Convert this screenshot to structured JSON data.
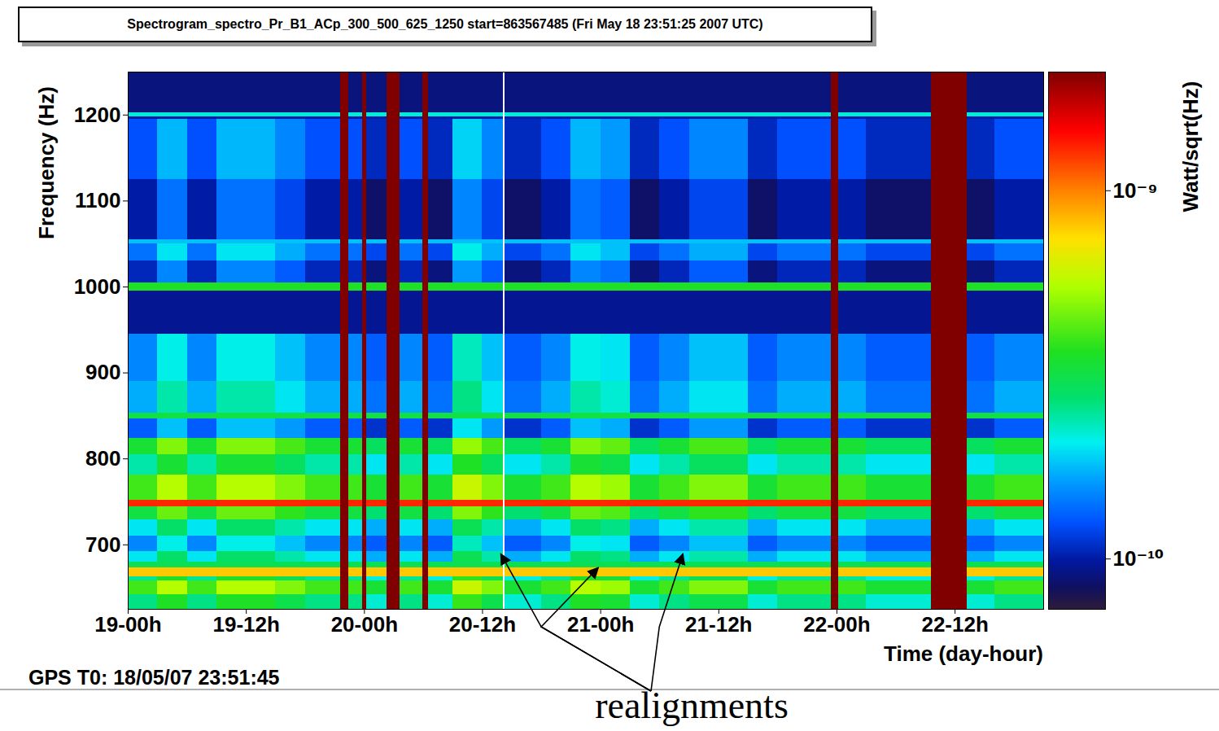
{
  "chart_data": {
    "type": "heatmap",
    "title": "Spectrogram_spectro_Pr_B1_ACp_300_500_625_1250 start=863567485 (Fri May 18 23:51:25 2007 UTC)",
    "x_label": "Time (day-hour)",
    "y_label": "Frequency (Hz)",
    "caption": "GPS T0: 18/05/07 23:51:45",
    "xlim": [
      0,
      93
    ],
    "xticks": [
      {
        "value": 0,
        "label": "19-00h"
      },
      {
        "value": 12,
        "label": "19-12h"
      },
      {
        "value": 24,
        "label": "20-00h"
      },
      {
        "value": 36,
        "label": "20-12h"
      },
      {
        "value": 48,
        "label": "21-00h"
      },
      {
        "value": 60,
        "label": "21-12h"
      },
      {
        "value": 72,
        "label": "22-00h"
      },
      {
        "value": 84,
        "label": "22-12h"
      }
    ],
    "ylim": [
      625,
      1250
    ],
    "yticks": [
      700,
      800,
      900,
      1000,
      1100,
      1200
    ],
    "x_edges": [
      0,
      3,
      6,
      9,
      12,
      15,
      18,
      21.6,
      22.4,
      23.8,
      24.2,
      26.3,
      27.6,
      29.9,
      30.5,
      33,
      36,
      38.1,
      38.3,
      42,
      45,
      48,
      51,
      54,
      57,
      60,
      63,
      66,
      69,
      71.4,
      72.2,
      75,
      78,
      81.6,
      85.2,
      88,
      93
    ],
    "y_edges": [
      625,
      642,
      658,
      663,
      673,
      680,
      692,
      710,
      729,
      744,
      752,
      781,
      805,
      824,
      847,
      853,
      890,
      945,
      995,
      1005,
      1030,
      1050,
      1055,
      1125,
      1195,
      1198,
      1203,
      1250
    ],
    "cells": [
      [
        2.6e-10,
        3.6e-10,
        2.6e-10,
        3.6e-10,
        3.6e-10,
        3.1e-10,
        2.6e-10,
        2.1e-09,
        2.6e-10,
        2.1e-09,
        2.2e-10,
        2.1e-09,
        2.6e-10,
        2.1e-09,
        2.2e-10,
        3.9e-10,
        3.1e-10,
        null,
        2.2e-10,
        2.6e-10,
        3.6e-10,
        3.4e-10,
        2.2e-10,
        2.6e-10,
        3.1e-10,
        3.1e-10,
        2.2e-10,
        2.6e-10,
        2.6e-10,
        2.1e-09,
        2.6e-10,
        2.2e-10,
        2.2e-10,
        2.1e-09,
        2.2e-10,
        2.6e-10
      ],
      [
        4e-10,
        5.6e-10,
        4e-10,
        5.6e-10,
        5.6e-10,
        4.8e-10,
        4e-10,
        2.1e-09,
        4e-10,
        2.1e-09,
        3.4e-10,
        2.1e-09,
        4e-10,
        2.1e-09,
        3.4e-10,
        6e-10,
        4.8e-10,
        null,
        3.4e-10,
        4e-10,
        5.6e-10,
        5.2e-10,
        3.4e-10,
        4e-10,
        4.8e-10,
        4.8e-10,
        3.4e-10,
        4e-10,
        4e-10,
        2.1e-09,
        4e-10,
        3.4e-10,
        3.4e-10,
        2.1e-09,
        3.4e-10,
        4e-10
      ],
      [
        2.5e-10,
        3.5e-10,
        2.5e-10,
        3.5e-10,
        3.5e-10,
        3e-10,
        2.5e-10,
        2.1e-09,
        2.5e-10,
        2.1e-09,
        2.1e-10,
        2.1e-09,
        2.5e-10,
        2.1e-09,
        2.1e-10,
        3.8e-10,
        3e-10,
        null,
        2.1e-10,
        2.5e-10,
        3.5e-10,
        3.3e-10,
        2.1e-10,
        2.5e-10,
        3e-10,
        3e-10,
        2.1e-10,
        2.5e-10,
        2.5e-10,
        2.1e-09,
        2.5e-10,
        2.1e-10,
        2.1e-10,
        2.1e-09,
        2.1e-10,
        2.5e-10
      ],
      [
        8e-10,
        8e-10,
        8e-10,
        8e-10,
        8e-10,
        8e-10,
        8e-10,
        2.1e-09,
        8e-10,
        2.1e-09,
        8e-10,
        2.1e-09,
        8e-10,
        2.1e-09,
        8e-10,
        8e-10,
        8e-10,
        null,
        8e-10,
        8e-10,
        8e-10,
        8e-10,
        8e-10,
        8e-10,
        8e-10,
        8e-10,
        8e-10,
        8e-10,
        8e-10,
        2.1e-09,
        8e-10,
        8e-10,
        8e-10,
        2.1e-09,
        8e-10,
        8e-10
      ],
      [
        3e-10,
        3e-10,
        3e-10,
        3e-10,
        3e-10,
        3e-10,
        3e-10,
        2.1e-09,
        3e-10,
        2.1e-09,
        3e-10,
        2.1e-09,
        3e-10,
        2.1e-09,
        3e-10,
        3e-10,
        3e-10,
        null,
        3e-10,
        3e-10,
        3e-10,
        3e-10,
        3e-10,
        3e-10,
        3e-10,
        3e-10,
        3e-10,
        3e-10,
        3e-10,
        2.1e-09,
        3e-10,
        3e-10,
        3e-10,
        2.1e-09,
        3e-10,
        3e-10
      ],
      [
        2e-10,
        2.8e-10,
        2e-10,
        2.8e-10,
        2.8e-10,
        2.4e-10,
        2e-10,
        2.1e-09,
        2e-10,
        2.1e-09,
        1.7e-10,
        2.1e-09,
        2e-10,
        2.1e-09,
        1.7e-10,
        3e-10,
        2.4e-10,
        null,
        1.7e-10,
        2e-10,
        2.8e-10,
        2.6e-10,
        1.7e-10,
        2e-10,
        2.4e-10,
        2.4e-10,
        1.7e-10,
        2e-10,
        2e-10,
        2.1e-09,
        2e-10,
        1.7e-10,
        1.7e-10,
        2.1e-09,
        1.7e-10,
        2e-10
      ],
      [
        1.5e-10,
        2.1e-10,
        1.5e-10,
        2.1e-10,
        2.1e-10,
        1.8e-10,
        1.5e-10,
        2.1e-09,
        1.5e-10,
        2.1e-09,
        1.3e-10,
        2.1e-09,
        1.5e-10,
        2.1e-09,
        1.3e-10,
        2.3e-10,
        1.8e-10,
        null,
        1.3e-10,
        1.5e-10,
        2.1e-10,
        2e-10,
        1.3e-10,
        1.5e-10,
        1.8e-10,
        1.8e-10,
        1.3e-10,
        1.5e-10,
        1.5e-10,
        2.1e-09,
        1.5e-10,
        1.3e-10,
        1.3e-10,
        2.1e-09,
        1.3e-10,
        1.5e-10
      ],
      [
        2e-10,
        2.8e-10,
        2e-10,
        2.8e-10,
        2.8e-10,
        2.4e-10,
        2e-10,
        2.1e-09,
        2e-10,
        2.1e-09,
        1.7e-10,
        2.1e-09,
        2e-10,
        2.1e-09,
        1.7e-10,
        3e-10,
        2.4e-10,
        null,
        1.7e-10,
        2e-10,
        2.8e-10,
        2.6e-10,
        1.7e-10,
        2e-10,
        2.4e-10,
        2.4e-10,
        1.7e-10,
        2e-10,
        2e-10,
        2.1e-09,
        2e-10,
        1.7e-10,
        1.7e-10,
        2.1e-09,
        1.7e-10,
        2e-10
      ],
      [
        3.2e-10,
        4.5e-10,
        3.2e-10,
        4.5e-10,
        4.5e-10,
        3.8e-10,
        3.2e-10,
        2.1e-09,
        3.2e-10,
        2.1e-09,
        2.7e-10,
        2.1e-09,
        3.2e-10,
        2.1e-09,
        2.7e-10,
        4.8e-10,
        3.8e-10,
        null,
        2.7e-10,
        3.2e-10,
        4.5e-10,
        4.2e-10,
        2.7e-10,
        3.2e-10,
        3.8e-10,
        3.8e-10,
        2.7e-10,
        3.2e-10,
        3.2e-10,
        2.1e-09,
        3.2e-10,
        2.7e-10,
        2.7e-10,
        2.1e-09,
        2.7e-10,
        3.2e-10
      ],
      [
        1.3e-09,
        1.3e-09,
        1.3e-09,
        1.3e-09,
        1.3e-09,
        1.3e-09,
        1.3e-09,
        2.1e-09,
        1.3e-09,
        2.1e-09,
        1.3e-09,
        2.1e-09,
        1.3e-09,
        2.1e-09,
        1.3e-09,
        1.3e-09,
        1.3e-09,
        null,
        1.3e-09,
        1.3e-09,
        1.3e-09,
        1.3e-09,
        1.3e-09,
        1.3e-09,
        1.3e-09,
        1.3e-09,
        1.3e-09,
        1.3e-09,
        1.3e-09,
        2.1e-09,
        1.3e-09,
        1.3e-09,
        1.3e-09,
        2.1e-09,
        1.3e-09,
        1.3e-09
      ],
      [
        4e-10,
        5.6e-10,
        4e-10,
        5.6e-10,
        5.6e-10,
        4.8e-10,
        4e-10,
        2.1e-09,
        4e-10,
        2.1e-09,
        3.4e-10,
        2.1e-09,
        4e-10,
        2.1e-09,
        3.4e-10,
        6e-10,
        4.8e-10,
        null,
        3.4e-10,
        4e-10,
        5.6e-10,
        5.2e-10,
        3.4e-10,
        4e-10,
        4.8e-10,
        4.8e-10,
        3.4e-10,
        4e-10,
        4e-10,
        2.1e-09,
        4e-10,
        3.4e-10,
        3.4e-10,
        2.1e-09,
        3.4e-10,
        4e-10
      ],
      [
        2.4e-10,
        3.4e-10,
        2.4e-10,
        3.4e-10,
        3.4e-10,
        2.9e-10,
        2.4e-10,
        2.1e-09,
        2.4e-10,
        2.1e-09,
        2e-10,
        2.1e-09,
        2.4e-10,
        2.1e-09,
        2e-10,
        3.6e-10,
        2.9e-10,
        null,
        2e-10,
        2.4e-10,
        3.4e-10,
        3.1e-10,
        2e-10,
        2.4e-10,
        2.9e-10,
        2.9e-10,
        2e-10,
        2.4e-10,
        2.4e-10,
        2.1e-09,
        2.4e-10,
        2e-10,
        2e-10,
        2.1e-09,
        2e-10,
        2.4e-10
      ],
      [
        3.4e-10,
        4.8e-10,
        3.4e-10,
        4.8e-10,
        4.8e-10,
        4.1e-10,
        3.4e-10,
        2.1e-09,
        3.4e-10,
        2.1e-09,
        2.9e-10,
        2.1e-09,
        3.4e-10,
        2.1e-09,
        2.9e-10,
        5.1e-10,
        4.1e-10,
        null,
        2.9e-10,
        3.4e-10,
        4.8e-10,
        4.4e-10,
        2.9e-10,
        3.4e-10,
        4.1e-10,
        4.1e-10,
        2.9e-10,
        3.4e-10,
        3.4e-10,
        2.1e-09,
        3.4e-10,
        2.9e-10,
        2.9e-10,
        2.1e-09,
        2.9e-10,
        3.4e-10
      ],
      [
        1.3e-10,
        1.8e-10,
        1.3e-10,
        1.8e-10,
        1.8e-10,
        1.6e-10,
        1.3e-10,
        2.1e-09,
        1.3e-10,
        2.1e-09,
        1.1e-10,
        2.1e-09,
        1.3e-10,
        2.1e-09,
        1.1e-10,
        2e-10,
        1.6e-10,
        null,
        1.1e-10,
        1.3e-10,
        1.8e-10,
        1.7e-10,
        1.1e-10,
        1.3e-10,
        1.6e-10,
        1.6e-10,
        1.1e-10,
        1.3e-10,
        1.3e-10,
        2.1e-09,
        1.3e-10,
        1.1e-10,
        1.1e-10,
        2.1e-09,
        1.1e-10,
        1.3e-10
      ],
      [
        3.2e-10,
        3.2e-10,
        3.2e-10,
        3.2e-10,
        3.2e-10,
        3.2e-10,
        3.2e-10,
        2.1e-09,
        3.2e-10,
        2.1e-09,
        3.2e-10,
        2.1e-09,
        3.2e-10,
        2.1e-09,
        3.2e-10,
        3.2e-10,
        3.2e-10,
        null,
        3.2e-10,
        3.2e-10,
        3.2e-10,
        3.2e-10,
        3.2e-10,
        3.2e-10,
        3.2e-10,
        3.2e-10,
        3.2e-10,
        3.2e-10,
        3.2e-10,
        2.1e-09,
        3.2e-10,
        3.2e-10,
        3.2e-10,
        2.1e-09,
        3.2e-10,
        3.2e-10
      ],
      [
        1.7e-10,
        2.4e-10,
        1.7e-10,
        2.4e-10,
        2.4e-10,
        2e-10,
        1.7e-10,
        2.1e-09,
        1.7e-10,
        2.1e-09,
        1.4e-10,
        2.1e-09,
        1.7e-10,
        2.1e-09,
        1.4e-10,
        2.6e-10,
        2e-10,
        null,
        1.4e-10,
        1.7e-10,
        2.4e-10,
        2.2e-10,
        1.4e-10,
        1.7e-10,
        2e-10,
        2e-10,
        1.4e-10,
        1.7e-10,
        1.7e-10,
        2.1e-09,
        1.7e-10,
        1.4e-10,
        1.4e-10,
        2.1e-09,
        1.4e-10,
        1.7e-10
      ],
      [
        1.5e-10,
        2.1e-10,
        1.5e-10,
        2.1e-10,
        2.1e-10,
        1.8e-10,
        1.5e-10,
        2.1e-09,
        1.5e-10,
        2.1e-09,
        1.3e-10,
        2.1e-09,
        1.5e-10,
        2.1e-09,
        1.3e-10,
        2.3e-10,
        1.8e-10,
        null,
        1.3e-10,
        1.5e-10,
        2.1e-10,
        2e-10,
        1.3e-10,
        1.5e-10,
        1.8e-10,
        1.8e-10,
        1.3e-10,
        1.5e-10,
        1.5e-10,
        2.1e-09,
        1.5e-10,
        1.3e-10,
        1.3e-10,
        2.1e-09,
        1.3e-10,
        1.5e-10
      ],
      [
        9.5e-11,
        9.5e-11,
        9.5e-11,
        9.5e-11,
        9.5e-11,
        9.5e-11,
        9.5e-11,
        2.1e-09,
        9.5e-11,
        2.1e-09,
        9.5e-11,
        2.1e-09,
        9.5e-11,
        2.1e-09,
        9.5e-11,
        9.5e-11,
        9.5e-11,
        null,
        9.5e-11,
        9.5e-11,
        9.5e-11,
        9.5e-11,
        9.5e-11,
        9.5e-11,
        9.5e-11,
        9.5e-11,
        9.5e-11,
        9.5e-11,
        9.5e-11,
        2.1e-09,
        9.5e-11,
        9.5e-11,
        9.5e-11,
        2.1e-09,
        9.5e-11,
        9.5e-11
      ],
      [
        3.6e-10,
        3.6e-10,
        3.6e-10,
        3.6e-10,
        3.6e-10,
        3.6e-10,
        3.6e-10,
        2.1e-09,
        3.6e-10,
        2.1e-09,
        3.6e-10,
        2.1e-09,
        3.6e-10,
        2.1e-09,
        3.6e-10,
        3.6e-10,
        3.6e-10,
        null,
        3.6e-10,
        3.6e-10,
        3.6e-10,
        3.6e-10,
        3.6e-10,
        3.6e-10,
        3.6e-10,
        3.6e-10,
        3.6e-10,
        3.6e-10,
        3.6e-10,
        2.1e-09,
        3.6e-10,
        3.6e-10,
        3.6e-10,
        2.1e-09,
        3.6e-10,
        3.6e-10
      ],
      [
        1.05e-10,
        1.5e-10,
        1.05e-10,
        1.5e-10,
        1.5e-10,
        1.3e-10,
        1.05e-10,
        2.1e-09,
        1.05e-10,
        2.1e-09,
        9e-11,
        2.1e-09,
        1.05e-10,
        2.1e-09,
        9e-11,
        1.6e-10,
        1.3e-10,
        null,
        9e-11,
        1.05e-10,
        1.5e-10,
        1.4e-10,
        9e-11,
        1.05e-10,
        1.3e-10,
        1.3e-10,
        9e-11,
        1.05e-10,
        1.05e-10,
        2.1e-09,
        1.05e-10,
        9e-11,
        9e-11,
        2.1e-09,
        9e-11,
        1.05e-10
      ],
      [
        1.4e-10,
        2e-10,
        1.4e-10,
        2e-10,
        2e-10,
        1.7e-10,
        1.4e-10,
        2.1e-09,
        1.4e-10,
        2.1e-09,
        1.2e-10,
        2.1e-09,
        1.4e-10,
        2.1e-09,
        1.2e-10,
        2.1e-10,
        1.7e-10,
        null,
        1.2e-10,
        1.4e-10,
        2e-10,
        1.8e-10,
        1.2e-10,
        1.4e-10,
        1.7e-10,
        1.7e-10,
        1.2e-10,
        1.4e-10,
        1.4e-10,
        2.1e-09,
        1.4e-10,
        1.2e-10,
        1.2e-10,
        2.1e-09,
        1.2e-10,
        1.4e-10
      ],
      [
        1.8e-10,
        1.8e-10,
        1.8e-10,
        1.8e-10,
        1.8e-10,
        1.8e-10,
        1.8e-10,
        2.1e-09,
        1.8e-10,
        2.1e-09,
        1.8e-10,
        2.1e-09,
        1.8e-10,
        2.1e-09,
        1.8e-10,
        1.8e-10,
        1.8e-10,
        null,
        1.8e-10,
        1.8e-10,
        1.8e-10,
        1.8e-10,
        1.8e-10,
        1.8e-10,
        1.8e-10,
        1.8e-10,
        1.8e-10,
        1.8e-10,
        1.8e-10,
        2.1e-09,
        1.8e-10,
        1.8e-10,
        1.8e-10,
        2.1e-09,
        1.8e-10,
        1.8e-10
      ],
      [
        1e-10,
        1.4e-10,
        1e-10,
        1.4e-10,
        1.4e-10,
        1.2e-10,
        1e-10,
        2.1e-09,
        1e-10,
        2.1e-09,
        8.5e-11,
        2.1e-09,
        1e-10,
        2.1e-09,
        8.5e-11,
        1.5e-10,
        1.2e-10,
        null,
        8.5e-11,
        1e-10,
        1.4e-10,
        1.3e-10,
        8.5e-11,
        1e-10,
        1.2e-10,
        1.2e-10,
        8.5e-11,
        1e-10,
        1e-10,
        2.1e-09,
        1e-10,
        8.5e-11,
        8.5e-11,
        2.1e-09,
        8.5e-11,
        1e-10
      ],
      [
        1.25e-10,
        1.75e-10,
        1.25e-10,
        1.75e-10,
        1.75e-10,
        1.5e-10,
        1.25e-10,
        2.1e-09,
        1.25e-10,
        2.1e-09,
        1.06e-10,
        2.1e-09,
        1.25e-10,
        2.1e-09,
        1.06e-10,
        1.9e-10,
        1.5e-10,
        null,
        1.06e-10,
        1.25e-10,
        1.75e-10,
        1.6e-10,
        1.06e-10,
        1.25e-10,
        1.5e-10,
        1.5e-10,
        1.06e-10,
        1.25e-10,
        1.25e-10,
        2.1e-09,
        1.25e-10,
        1.06e-10,
        1.06e-10,
        2.1e-09,
        1.06e-10,
        1.25e-10
      ],
      [
        1e-10,
        1e-10,
        1e-10,
        1e-10,
        1e-10,
        1e-10,
        1e-10,
        2.1e-09,
        1e-10,
        2.1e-09,
        1e-10,
        2.1e-09,
        1e-10,
        2.1e-09,
        1e-10,
        1e-10,
        1e-10,
        null,
        1e-10,
        1e-10,
        1e-10,
        1e-10,
        1e-10,
        1e-10,
        1e-10,
        1e-10,
        1e-10,
        1e-10,
        1e-10,
        2.1e-09,
        1e-10,
        1e-10,
        1e-10,
        2.1e-09,
        1e-10,
        1e-10
      ],
      [
        2.2e-10,
        2.2e-10,
        2.2e-10,
        2.2e-10,
        2.2e-10,
        2.2e-10,
        2.2e-10,
        2.1e-09,
        2.2e-10,
        2.1e-09,
        2.2e-10,
        2.1e-09,
        2.2e-10,
        2.1e-09,
        2.2e-10,
        2.2e-10,
        2.2e-10,
        null,
        2.2e-10,
        2.2e-10,
        2.2e-10,
        2.2e-10,
        2.2e-10,
        2.2e-10,
        2.2e-10,
        2.2e-10,
        2.2e-10,
        2.2e-10,
        2.2e-10,
        2.1e-09,
        2.2e-10,
        2.2e-10,
        2.2e-10,
        2.1e-09,
        2.2e-10,
        2.2e-10
      ],
      [
        9e-11,
        9e-11,
        9e-11,
        9e-11,
        9e-11,
        9e-11,
        9e-11,
        2.1e-09,
        9e-11,
        2.1e-09,
        9e-11,
        2.1e-09,
        9e-11,
        2.1e-09,
        9e-11,
        9e-11,
        9e-11,
        null,
        9e-11,
        9e-11,
        9e-11,
        9e-11,
        9e-11,
        9e-11,
        9e-11,
        9e-11,
        9e-11,
        9e-11,
        9e-11,
        2.1e-09,
        9e-11,
        9e-11,
        9e-11,
        2.1e-09,
        9e-11,
        9e-11
      ]
    ],
    "colorbar": {
      "range": [
        7.3e-11,
        2.1e-09
      ],
      "log": true,
      "ticks": [
        {
          "value": 1e-10,
          "label": "10⁻¹⁰"
        },
        {
          "value": 1e-09,
          "label": "10⁻⁹"
        }
      ],
      "label": "Watt/sqrt(Hz)"
    },
    "annotations": [
      {
        "text": "realignments",
        "points": [
          {
            "x": 37.9,
            "y": 689
          },
          {
            "x": 47.8,
            "y": 673
          },
          {
            "x": 56.4,
            "y": 689
          }
        ]
      }
    ]
  }
}
